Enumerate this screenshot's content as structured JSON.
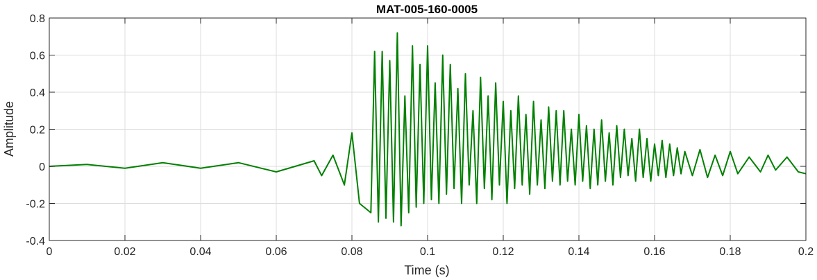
{
  "chart_data": {
    "type": "line",
    "title": "MAT-005-160-0005",
    "xlabel": "Time (s)",
    "ylabel": "Amplitude",
    "xlim": [
      0,
      0.2
    ],
    "ylim": [
      -0.4,
      0.8
    ],
    "xticks": [
      0,
      0.02,
      0.04,
      0.06,
      0.08,
      0.1,
      0.12,
      0.14,
      0.16,
      0.18,
      0.2
    ],
    "xtick_labels": [
      "0",
      "0.02",
      "0.04",
      "0.06",
      "0.08",
      "0.1",
      "0.12",
      "0.14",
      "0.16",
      "0.18",
      "0.2"
    ],
    "yticks": [
      -0.4,
      -0.2,
      0,
      0.2,
      0.4,
      0.6,
      0.8
    ],
    "ytick_labels": [
      "-0.4",
      "-0.2",
      "0",
      "0.2",
      "0.4",
      "0.6",
      "0.8"
    ],
    "grid": true,
    "line_color": "#008000",
    "series": [
      {
        "x": [
          0,
          0.01,
          0.02,
          0.03,
          0.04,
          0.05,
          0.06,
          0.07,
          0.072,
          0.075,
          0.078,
          0.08,
          0.082,
          0.085,
          0.086,
          0.087,
          0.088,
          0.089,
          0.09,
          0.091,
          0.092,
          0.093,
          0.094,
          0.095,
          0.096,
          0.097,
          0.098,
          0.099,
          0.1,
          0.101,
          0.102,
          0.103,
          0.104,
          0.105,
          0.106,
          0.107,
          0.108,
          0.109,
          0.11,
          0.111,
          0.112,
          0.113,
          0.114,
          0.115,
          0.116,
          0.117,
          0.118,
          0.119,
          0.12,
          0.121,
          0.122,
          0.123,
          0.124,
          0.125,
          0.126,
          0.127,
          0.128,
          0.129,
          0.13,
          0.131,
          0.132,
          0.133,
          0.134,
          0.135,
          0.136,
          0.137,
          0.138,
          0.139,
          0.14,
          0.141,
          0.142,
          0.143,
          0.144,
          0.145,
          0.146,
          0.147,
          0.148,
          0.149,
          0.15,
          0.151,
          0.152,
          0.153,
          0.154,
          0.155,
          0.156,
          0.157,
          0.158,
          0.159,
          0.16,
          0.161,
          0.162,
          0.163,
          0.164,
          0.165,
          0.166,
          0.167,
          0.168,
          0.17,
          0.172,
          0.174,
          0.176,
          0.178,
          0.18,
          0.182,
          0.185,
          0.188,
          0.19,
          0.192,
          0.195,
          0.198,
          0.2
        ],
        "y": [
          0,
          0.01,
          -0.01,
          0.02,
          -0.01,
          0.02,
          -0.03,
          0.03,
          -0.05,
          0.06,
          -0.1,
          0.18,
          -0.2,
          -0.25,
          0.62,
          -0.3,
          0.62,
          -0.28,
          0.57,
          -0.3,
          0.72,
          -0.32,
          0.38,
          -0.25,
          0.65,
          -0.22,
          0.55,
          -0.2,
          0.65,
          -0.18,
          0.45,
          -0.2,
          0.6,
          -0.15,
          0.55,
          -0.12,
          0.42,
          -0.2,
          0.5,
          -0.1,
          0.3,
          -0.2,
          0.48,
          -0.12,
          0.38,
          -0.18,
          0.45,
          -0.1,
          0.35,
          -0.2,
          0.3,
          -0.12,
          0.38,
          -0.1,
          0.28,
          -0.15,
          0.35,
          -0.1,
          0.25,
          -0.12,
          0.32,
          -0.08,
          0.3,
          -0.1,
          0.3,
          -0.08,
          0.2,
          -0.1,
          0.28,
          -0.08,
          0.22,
          -0.12,
          0.2,
          -0.1,
          0.25,
          -0.08,
          0.18,
          -0.1,
          0.22,
          -0.06,
          0.2,
          -0.05,
          0.15,
          -0.08,
          0.2,
          -0.06,
          0.15,
          -0.08,
          0.12,
          -0.05,
          0.14,
          -0.06,
          0.12,
          -0.05,
          0.1,
          -0.04,
          0.08,
          -0.05,
          0.09,
          -0.06,
          0.06,
          -0.05,
          0.08,
          -0.04,
          0.05,
          -0.03,
          0.06,
          -0.02,
          0.05,
          -0.03,
          -0.04
        ]
      }
    ]
  }
}
